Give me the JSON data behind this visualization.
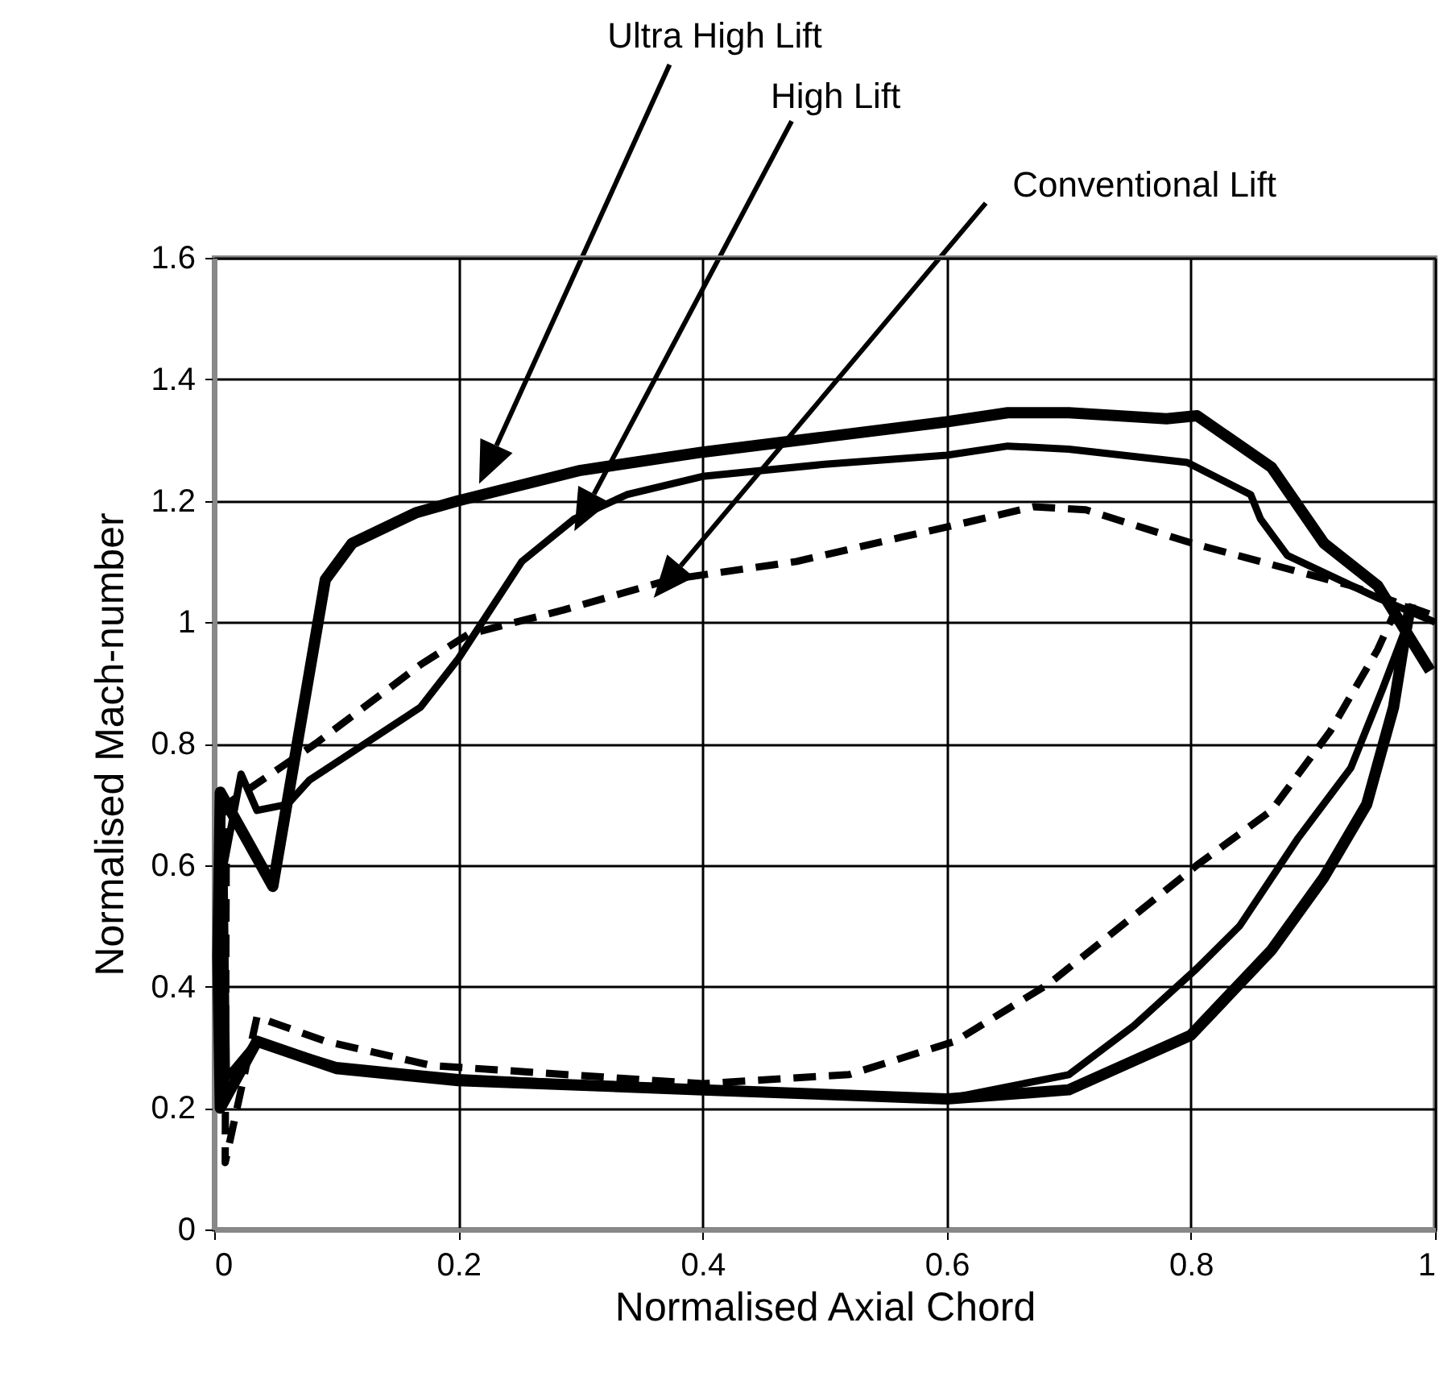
{
  "chart_data": {
    "type": "line",
    "xlabel": "Normalised Axial Chord",
    "ylabel": "Normalised Mach-number",
    "xlim": [
      0,
      1
    ],
    "ylim": [
      0,
      1.6
    ],
    "xticks": [
      0,
      0.2,
      0.4,
      0.6,
      0.8,
      1
    ],
    "yticks": [
      0,
      0.2,
      0.4,
      0.6,
      0.8,
      1,
      1.2,
      1.4,
      1.6
    ],
    "grid": true,
    "series": [
      {
        "name": "Ultra High Lift",
        "color": "#000000",
        "line_style": "solid",
        "x": [
          0.98,
          0.974,
          0.966,
          0.944,
          0.909,
          0.866,
          0.8,
          0.7,
          0.6,
          0.4,
          0.2,
          0.1,
          0.035,
          0.005,
          0.003,
          0.005,
          0.048,
          0.091,
          0.113,
          0.165,
          0.2,
          0.3,
          0.4,
          0.5,
          0.6,
          0.65,
          0.7,
          0.78,
          0.805,
          0.866,
          0.909,
          0.953,
          0.996
        ],
        "values": [
          1.03,
          0.96,
          0.86,
          0.7,
          0.58,
          0.46,
          0.32,
          0.23,
          0.215,
          0.23,
          0.245,
          0.265,
          0.31,
          0.2,
          0.45,
          0.72,
          0.565,
          1.07,
          1.13,
          1.18,
          1.2,
          1.25,
          1.28,
          1.305,
          1.33,
          1.345,
          1.345,
          1.335,
          1.34,
          1.255,
          1.13,
          1.06,
          0.92
        ]
      },
      {
        "name": "High Lift",
        "color": "#000000",
        "line_style": "solid",
        "x": [
          0.974,
          0.957,
          0.931,
          0.888,
          0.84,
          0.805,
          0.753,
          0.7,
          0.6,
          0.4,
          0.2,
          0.1,
          0.035,
          0.01,
          0.008,
          0.022,
          0.035,
          0.06,
          0.078,
          0.169,
          0.2,
          0.252,
          0.295,
          0.338,
          0.4,
          0.5,
          0.6,
          0.65,
          0.7,
          0.797,
          0.849,
          0.857,
          0.879,
          0.953,
          1
        ],
        "values": [
          0.98,
          0.89,
          0.76,
          0.645,
          0.5,
          0.43,
          0.335,
          0.255,
          0.215,
          0.23,
          0.25,
          0.27,
          0.31,
          0.25,
          0.6,
          0.75,
          0.69,
          0.7,
          0.74,
          0.86,
          0.94,
          1.1,
          1.17,
          1.21,
          1.24,
          1.26,
          1.275,
          1.29,
          1.285,
          1.263,
          1.21,
          1.17,
          1.11,
          1.04,
          1
        ]
      },
      {
        "name": "Conventional Lift",
        "color": "#000000",
        "line_style": "dashed",
        "x": [
          0.97,
          0.953,
          0.914,
          0.866,
          0.805,
          0.684,
          0.607,
          0.52,
          0.4,
          0.178,
          0.091,
          0.035,
          0.009,
          0.01,
          0.083,
          0.169,
          0.208,
          0.286,
          0.373,
          0.477,
          0.563,
          0.607,
          0.671,
          0.714,
          0.801,
          0.931,
          1
        ],
        "values": [
          1.03,
          0.955,
          0.82,
          0.69,
          0.6,
          0.405,
          0.31,
          0.255,
          0.24,
          0.27,
          0.31,
          0.35,
          0.11,
          0.7,
          0.8,
          0.93,
          0.98,
          1.02,
          1.07,
          1.1,
          1.14,
          1.16,
          1.19,
          1.185,
          1.13,
          1.06,
          1.01
        ]
      }
    ]
  }
}
